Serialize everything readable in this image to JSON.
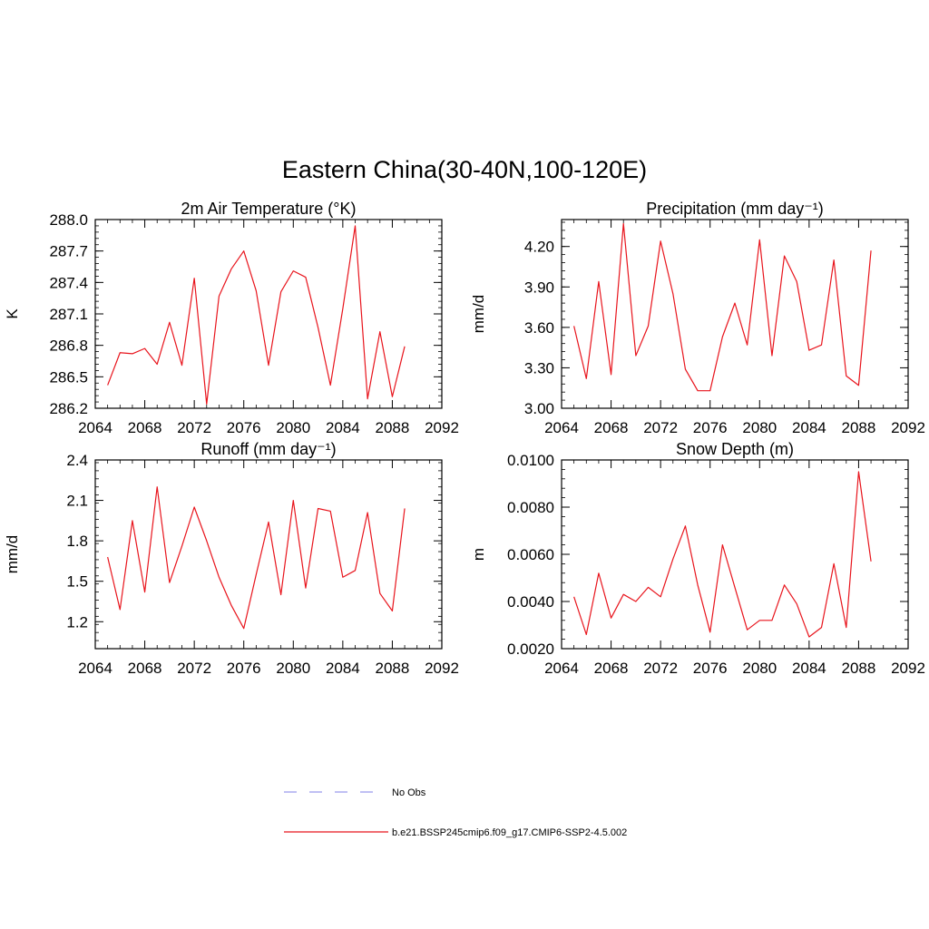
{
  "figure": {
    "title": "Eastern China(30-40N,100-120E)",
    "colors": {
      "model": "#e8141c",
      "obs": "#9a9aee",
      "axis": "#000000"
    }
  },
  "legend": {
    "obs_label": "No Obs",
    "model_label": "b.e21.BSSP245cmip6.f09_g17.CMIP6-SSP2-4.5.002"
  },
  "chart_data": [
    {
      "type": "line",
      "title": "2m Air Temperature (°K)",
      "ylabel": "K",
      "xlim": [
        2064,
        2092
      ],
      "ylim": [
        286.2,
        288.0
      ],
      "xticks": [
        2064,
        2068,
        2072,
        2076,
        2080,
        2084,
        2088,
        2092
      ],
      "yticks": [
        286.2,
        286.5,
        286.8,
        287.1,
        287.4,
        287.7,
        288.0
      ],
      "ydecimals": 1,
      "x": [
        2065,
        2066,
        2067,
        2068,
        2069,
        2070,
        2071,
        2072,
        2073,
        2074,
        2075,
        2076,
        2077,
        2078,
        2079,
        2080,
        2081,
        2082,
        2083,
        2084,
        2085,
        2086,
        2087,
        2088,
        2089
      ],
      "series": [
        {
          "values": [
            286.42,
            286.73,
            286.72,
            286.77,
            286.62,
            287.02,
            286.61,
            287.44,
            286.24,
            287.27,
            287.53,
            287.7,
            287.32,
            286.61,
            287.31,
            287.51,
            287.45,
            286.97,
            286.42,
            287.15,
            287.94,
            286.29,
            286.93,
            286.31,
            286.79
          ]
        }
      ]
    },
    {
      "type": "line",
      "title": "Precipitation (mm day⁻¹)",
      "ylabel": "mm/d",
      "xlim": [
        2064,
        2092
      ],
      "ylim": [
        3.0,
        4.4
      ],
      "xticks": [
        2064,
        2068,
        2072,
        2076,
        2080,
        2084,
        2088,
        2092
      ],
      "yticks": [
        3.0,
        3.3,
        3.6,
        3.9,
        4.2
      ],
      "ydecimals": 2,
      "x": [
        2065,
        2066,
        2067,
        2068,
        2069,
        2070,
        2071,
        2072,
        2073,
        2074,
        2075,
        2076,
        2077,
        2078,
        2079,
        2080,
        2081,
        2082,
        2083,
        2084,
        2085,
        2086,
        2087,
        2088,
        2089
      ],
      "series": [
        {
          "values": [
            3.61,
            3.22,
            3.94,
            3.25,
            4.37,
            3.39,
            3.61,
            4.24,
            3.85,
            3.29,
            3.13,
            3.13,
            3.53,
            3.78,
            3.47,
            4.25,
            3.39,
            4.13,
            3.94,
            3.43,
            3.47,
            4.1,
            3.24,
            3.17,
            4.17
          ]
        }
      ]
    },
    {
      "type": "line",
      "title": "Runoff (mm day⁻¹)",
      "ylabel": "mm/d",
      "xlim": [
        2064,
        2092
      ],
      "ylim": [
        1.0,
        2.4
      ],
      "xticks": [
        2064,
        2068,
        2072,
        2076,
        2080,
        2084,
        2088,
        2092
      ],
      "yticks": [
        1.2,
        1.5,
        1.8,
        2.1,
        2.4
      ],
      "ydecimals": 1,
      "x": [
        2065,
        2066,
        2067,
        2068,
        2069,
        2070,
        2071,
        2072,
        2073,
        2074,
        2075,
        2076,
        2077,
        2078,
        2079,
        2080,
        2081,
        2082,
        2083,
        2084,
        2085,
        2086,
        2087,
        2088,
        2089
      ],
      "series": [
        {
          "values": [
            1.68,
            1.29,
            1.95,
            1.42,
            2.2,
            1.49,
            1.76,
            2.05,
            1.8,
            1.53,
            1.32,
            1.15,
            1.55,
            1.94,
            1.4,
            2.1,
            1.45,
            2.04,
            2.02,
            1.53,
            1.58,
            2.01,
            1.41,
            1.28,
            2.04
          ]
        }
      ]
    },
    {
      "type": "line",
      "title": "Snow Depth (m)",
      "ylabel": "m",
      "xlim": [
        2064,
        2092
      ],
      "ylim": [
        0.002,
        0.01
      ],
      "xticks": [
        2064,
        2068,
        2072,
        2076,
        2080,
        2084,
        2088,
        2092
      ],
      "yticks": [
        0.002,
        0.004,
        0.006,
        0.008,
        0.01
      ],
      "ydecimals": 4,
      "x": [
        2065,
        2066,
        2067,
        2068,
        2069,
        2070,
        2071,
        2072,
        2073,
        2074,
        2075,
        2076,
        2077,
        2078,
        2079,
        2080,
        2081,
        2082,
        2083,
        2084,
        2085,
        2086,
        2087,
        2088,
        2089
      ],
      "series": [
        {
          "values": [
            0.0042,
            0.0026,
            0.0052,
            0.0033,
            0.0043,
            0.004,
            0.0046,
            0.0042,
            0.0058,
            0.0072,
            0.0047,
            0.0027,
            0.0064,
            0.0046,
            0.0028,
            0.0032,
            0.0032,
            0.0047,
            0.0039,
            0.0025,
            0.0029,
            0.0056,
            0.0029,
            0.0095,
            0.0057
          ]
        }
      ]
    }
  ]
}
